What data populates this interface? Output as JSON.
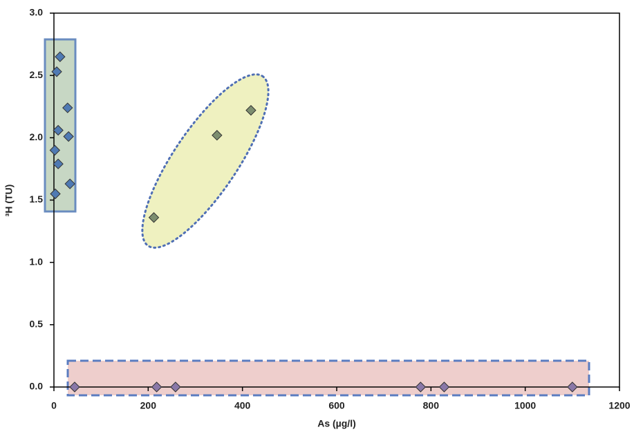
{
  "chart_data": {
    "type": "scatter",
    "x_label": "As (µg/l)",
    "y_label": "³H (TU)",
    "xlim": [
      0,
      1200
    ],
    "xticks": [
      0,
      200,
      400,
      600,
      800,
      1000,
      1200
    ],
    "ylim": [
      0,
      3
    ],
    "yticks": [
      {
        "value": 0,
        "label": "0.0"
      },
      {
        "value": 0.5,
        "label": "0.5"
      },
      {
        "value": 1,
        "label": "1.0"
      },
      {
        "value": 1.5,
        "label": "1.5"
      },
      {
        "value": 2,
        "label": "2.0"
      },
      {
        "value": 2.5,
        "label": "2.5"
      },
      {
        "value": 3,
        "label": "3.0"
      }
    ],
    "series": [
      {
        "color": "#4f7ab3",
        "x": [
          13,
          6,
          29,
          9,
          31,
          2,
          9,
          34,
          3
        ],
        "values": [
          2.65,
          2.53,
          2.24,
          2.06,
          2.01,
          1.9,
          1.79,
          1.63,
          1.55
        ]
      },
      {
        "color": "#7d8e70",
        "x": [
          212,
          346,
          418
        ],
        "values": [
          1.36,
          2.02,
          2.22
        ]
      },
      {
        "color": "#8a78a8",
        "x": [
          44,
          218,
          258,
          778,
          828,
          1100
        ],
        "values": [
          0,
          0,
          0,
          0,
          0,
          0
        ]
      }
    ]
  }
}
